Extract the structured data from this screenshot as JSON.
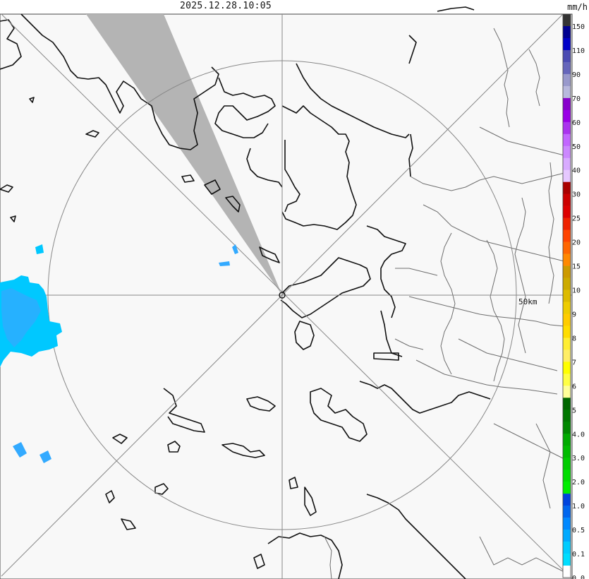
{
  "header": {
    "timestamp": "2025.12.28.10:05"
  },
  "map": {
    "range_ring_label": "50km",
    "colors": {
      "background": "#f8f8f8",
      "coast": "#111111",
      "border": "#707070",
      "grid": "#888888",
      "beam_block": "#b4b4b4",
      "echo_light": "#00c8ff",
      "echo_mid": "#33aaff"
    }
  },
  "legend": {
    "unit": "mm/h",
    "bins": [
      {
        "label": "150",
        "color": "#333333"
      },
      {
        "label": "",
        "color": "#000090"
      },
      {
        "label": "110",
        "color": "#0000c8"
      },
      {
        "label": "",
        "color": "#4c4cb3"
      },
      {
        "label": "90",
        "color": "#6666bb"
      },
      {
        "label": "",
        "color": "#9999cc"
      },
      {
        "label": "70",
        "color": "#b8b8dd"
      },
      {
        "label": "",
        "color": "#8800cc"
      },
      {
        "label": "60",
        "color": "#9900e6"
      },
      {
        "label": "",
        "color": "#aa33ee"
      },
      {
        "label": "50",
        "color": "#c266ff"
      },
      {
        "label": "",
        "color": "#cc88ff"
      },
      {
        "label": "40",
        "color": "#d8aaff"
      },
      {
        "label": "",
        "color": "#e6c8ff"
      },
      {
        "label": "30",
        "color": "#aa0000"
      },
      {
        "label": "",
        "color": "#cc0000"
      },
      {
        "label": "25",
        "color": "#dd0000"
      },
      {
        "label": "",
        "color": "#ee2200"
      },
      {
        "label": "20",
        "color": "#ff4400"
      },
      {
        "label": "",
        "color": "#ff6600"
      },
      {
        "label": "15",
        "color": "#ff8800"
      },
      {
        "label": "",
        "color": "#cc9900"
      },
      {
        "label": "10",
        "color": "#ccaa00"
      },
      {
        "label": "",
        "color": "#ddbb00"
      },
      {
        "label": "9",
        "color": "#eecc00"
      },
      {
        "label": "",
        "color": "#ffcc00"
      },
      {
        "label": "8",
        "color": "#ffdd00"
      },
      {
        "label": "",
        "color": "#ffee33"
      },
      {
        "label": "7",
        "color": "#ffee66"
      },
      {
        "label": "",
        "color": "#ffff00"
      },
      {
        "label": "6",
        "color": "#ffff44"
      },
      {
        "label": "",
        "color": "#ffff99"
      },
      {
        "label": "5",
        "color": "#006600"
      },
      {
        "label": "",
        "color": "#007700"
      },
      {
        "label": "4.0",
        "color": "#008800"
      },
      {
        "label": "",
        "color": "#00aa00"
      },
      {
        "label": "3.0",
        "color": "#00bb00"
      },
      {
        "label": "",
        "color": "#00cc00"
      },
      {
        "label": "2.0",
        "color": "#00dd00"
      },
      {
        "label": "",
        "color": "#00ee00"
      },
      {
        "label": "1.0",
        "color": "#0044dd"
      },
      {
        "label": "",
        "color": "#0066ee"
      },
      {
        "label": "0.5",
        "color": "#0088ff"
      },
      {
        "label": "",
        "color": "#00aaff"
      },
      {
        "label": "0.1",
        "color": "#00ccff"
      },
      {
        "label": "",
        "color": "#00ddff"
      },
      {
        "label": "0.0",
        "color": "#ffffff"
      }
    ]
  }
}
